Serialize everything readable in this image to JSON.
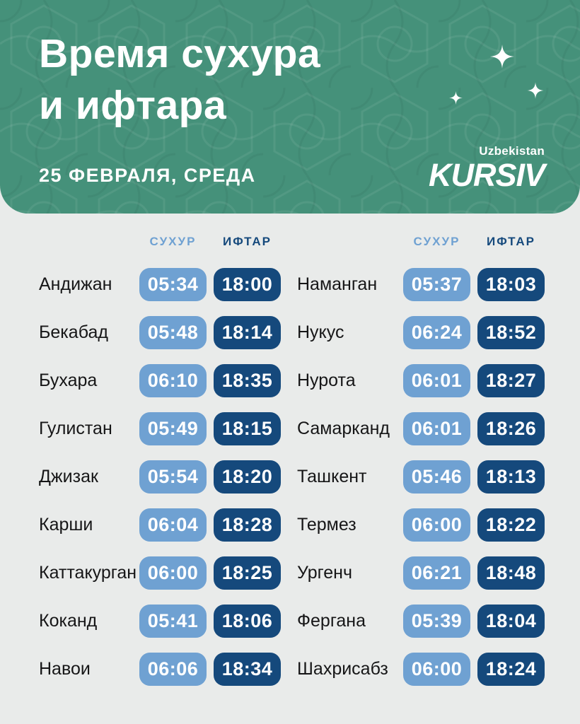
{
  "page": {
    "background": "#E9EBEA"
  },
  "header": {
    "title_line1": "Время сухура",
    "title_line2": "и ифтара",
    "date": "25 ФЕВРАЛЯ, СРЕДА",
    "brand_region": "Uzbekistan",
    "brand_name": "KURSIV",
    "card_color": "#45917A",
    "sparkle_icons": [
      "sparkle-large",
      "sparkle-medium",
      "sparkle-small"
    ]
  },
  "table": {
    "suhoor_header": "СУХУР",
    "iftar_header": "ИФТАР",
    "suhoor_color": "#6FA1D2",
    "iftar_color": "#15497C",
    "columns": [
      {
        "rows": [
          {
            "city": "Андижан",
            "suhoor": "05:34",
            "iftar": "18:00"
          },
          {
            "city": "Бекабад",
            "suhoor": "05:48",
            "iftar": "18:14"
          },
          {
            "city": "Бухара",
            "suhoor": "06:10",
            "iftar": "18:35"
          },
          {
            "city": "Гулистан",
            "suhoor": "05:49",
            "iftar": "18:15"
          },
          {
            "city": "Джизак",
            "suhoor": "05:54",
            "iftar": "18:20"
          },
          {
            "city": "Карши",
            "suhoor": "06:04",
            "iftar": "18:28"
          },
          {
            "city": "Каттакурган",
            "suhoor": "06:00",
            "iftar": "18:25"
          },
          {
            "city": "Коканд",
            "suhoor": "05:41",
            "iftar": "18:06"
          },
          {
            "city": "Навои",
            "suhoor": "06:06",
            "iftar": "18:34"
          }
        ]
      },
      {
        "rows": [
          {
            "city": "Наманган",
            "suhoor": "05:37",
            "iftar": "18:03"
          },
          {
            "city": "Нукус",
            "suhoor": "06:24",
            "iftar": "18:52"
          },
          {
            "city": "Нурота",
            "suhoor": "06:01",
            "iftar": "18:27"
          },
          {
            "city": "Самарканд",
            "suhoor": "06:01",
            "iftar": "18:26"
          },
          {
            "city": "Ташкент",
            "suhoor": "05:46",
            "iftar": "18:13"
          },
          {
            "city": "Термез",
            "suhoor": "06:00",
            "iftar": "18:22"
          },
          {
            "city": "Ургенч",
            "suhoor": "06:21",
            "iftar": "18:48"
          },
          {
            "city": "Фергана",
            "suhoor": "05:39",
            "iftar": "18:04"
          },
          {
            "city": "Шахрисабз",
            "suhoor": "06:00",
            "iftar": "18:24"
          }
        ]
      }
    ]
  }
}
